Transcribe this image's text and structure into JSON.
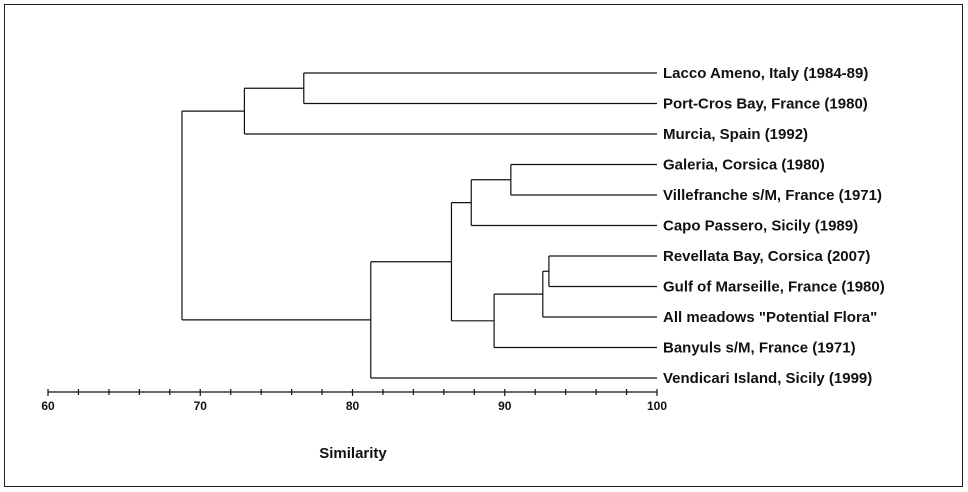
{
  "dendrogram": {
    "axis_label": "Similarity",
    "axis_range": [
      60,
      100
    ],
    "ticks": [
      60,
      70,
      80,
      90,
      100
    ],
    "leaves": [
      "Lacco Ameno, Italy (1984-89)",
      "Port-Cros Bay, France (1980)",
      "Murcia, Spain (1992)",
      "Galeria, Corsica (1980)",
      "Villefranche s/M, France (1971)",
      "Capo Passero, Sicily (1989)",
      "Revellata Bay, Corsica (2007)",
      "Gulf of Marseille, France (1980)",
      "All meadows \"Potential Flora\"",
      "Banyuls s/M, France (1971)",
      "Vendicari Island, Sicily (1999)"
    ],
    "merges": [
      {
        "id": "A",
        "a": "L0",
        "b": "L1",
        "similarity": 76.8
      },
      {
        "id": "B",
        "a": "A",
        "b": "L2",
        "similarity": 72.9
      },
      {
        "id": "C",
        "a": "L3",
        "b": "L4",
        "similarity": 90.4
      },
      {
        "id": "D",
        "a": "C",
        "b": "L5",
        "similarity": 87.8
      },
      {
        "id": "E",
        "a": "L6",
        "b": "L7",
        "similarity": 92.9
      },
      {
        "id": "F",
        "a": "E",
        "b": "L8",
        "similarity": 92.5
      },
      {
        "id": "G",
        "a": "F",
        "b": "L9",
        "similarity": 89.3
      },
      {
        "id": "H",
        "a": "D",
        "b": "G",
        "similarity": 86.5
      },
      {
        "id": "I",
        "a": "H",
        "b": "L10",
        "similarity": 81.2
      },
      {
        "id": "J",
        "a": "B",
        "b": "I",
        "similarity": 68.8
      }
    ]
  }
}
